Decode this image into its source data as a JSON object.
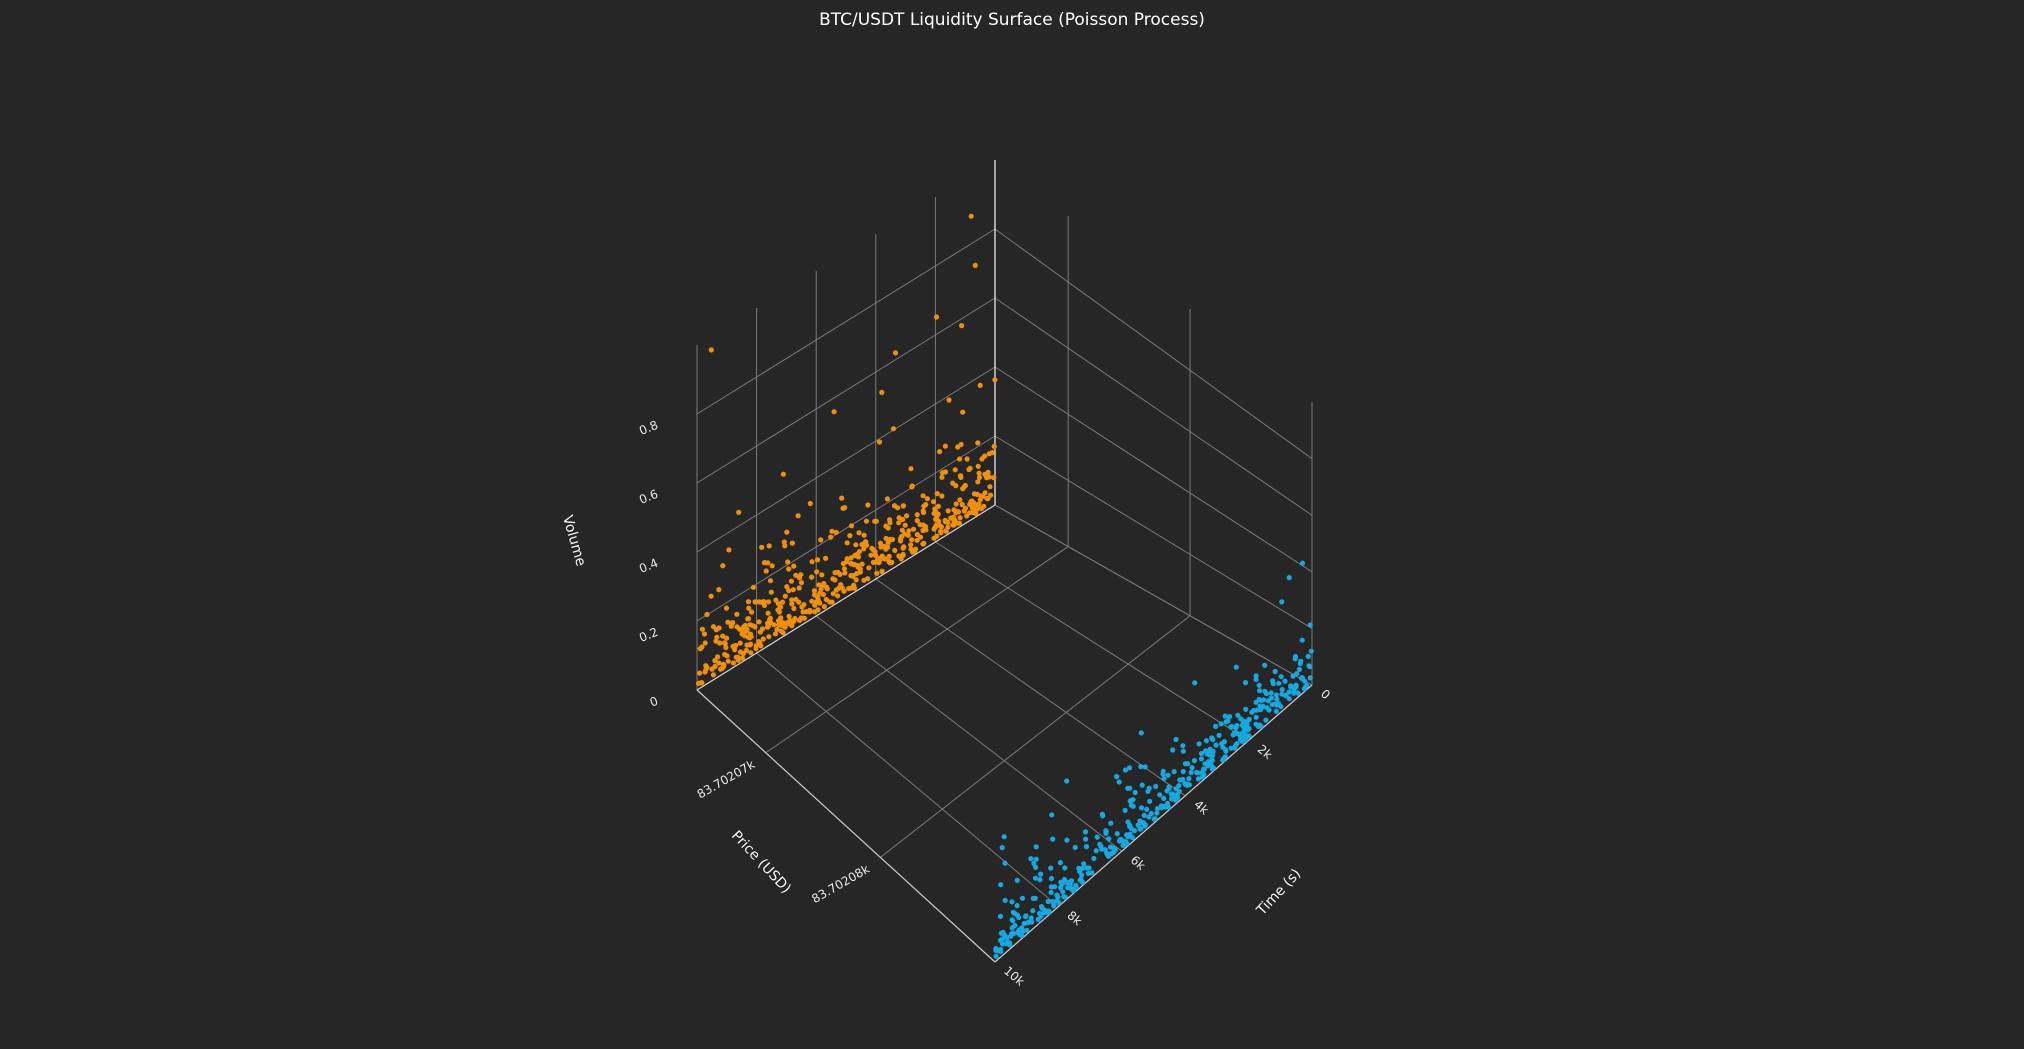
{
  "chart_data": {
    "type": "scatter",
    "title": "BTC/USDT Liquidity Surface (Poisson Process)",
    "axes": {
      "x": {
        "label": "Time (s)",
        "ticks": [
          {
            "value": 10000,
            "label": "10k"
          },
          {
            "value": 8000,
            "label": "8k"
          },
          {
            "value": 6000,
            "label": "6k"
          },
          {
            "value": 4000,
            "label": "4k"
          },
          {
            "value": 2000,
            "label": "2k"
          },
          {
            "value": 0,
            "label": "0"
          }
        ],
        "range": [
          0,
          10000
        ]
      },
      "y": {
        "label": "Price (USD)",
        "ticks": [
          {
            "value": 83702.07,
            "label": "83.70207k"
          },
          {
            "value": 83702.08,
            "label": "83.70208k"
          }
        ],
        "range": [
          83702.064,
          83702.09
        ]
      },
      "z": {
        "label": "Volume",
        "ticks": [
          {
            "value": 0,
            "label": "0"
          },
          {
            "value": 0.2,
            "label": "0.2"
          },
          {
            "value": 0.4,
            "label": "0.4"
          },
          {
            "value": 0.6,
            "label": "0.6"
          },
          {
            "value": 0.8,
            "label": "0.8"
          }
        ],
        "range": [
          0,
          1.0
        ]
      }
    },
    "grid": true,
    "series": [
      {
        "color": "#f0900a",
        "price": 83702.064,
        "points": [
          [
            9520,
            0.96
          ],
          [
            800,
            0.88
          ],
          [
            660,
            0.73
          ],
          [
            1960,
            0.65
          ],
          [
            3340,
            0.62
          ],
          [
            1120,
            0.58
          ],
          [
            5400,
            0.56
          ],
          [
            3800,
            0.53
          ],
          [
            7100,
            0.47
          ],
          [
            8600,
            0.44
          ]
        ],
        "generated": {
          "count": 480,
          "seed": 7,
          "scale": 0.075,
          "floor": 0.01
        }
      },
      {
        "color": "#16a8e0",
        "price": 83702.09,
        "points": [
          [
            300,
            0.46
          ],
          [
            720,
            0.45
          ],
          [
            3700,
            0.37
          ],
          [
            8700,
            0.28
          ],
          [
            9300,
            0.22
          ],
          [
            5400,
            0.24
          ]
        ],
        "generated": {
          "count": 420,
          "seed": 13,
          "scale": 0.07,
          "floor": 0.01
        }
      }
    ]
  }
}
